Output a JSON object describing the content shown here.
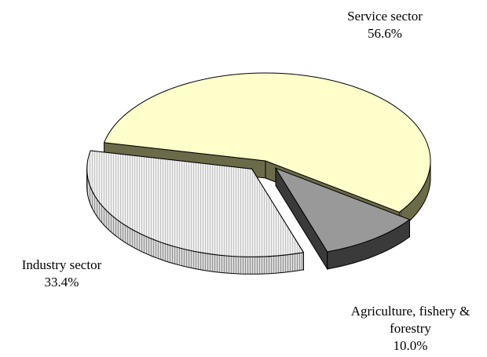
{
  "chart_data": {
    "type": "pie",
    "title": "",
    "slices": [
      {
        "label": "Service sector",
        "value_text": "56.6%",
        "value": 56.6,
        "top_color": "#ffffcc",
        "side_color": "#6b6b4a"
      },
      {
        "label": "Agriculture, fishery & forestry",
        "label_lines": [
          "Agriculture, fishery &",
          "forestry"
        ],
        "value_text": "10.0%",
        "value": 10.0,
        "top_color": "#999999",
        "side_color": "#3a3a3a"
      },
      {
        "label": "Industry sector",
        "value_text": "33.4%",
        "value": 33.4,
        "top_color": "#e6e6e6",
        "side_color": "#cfcfcf",
        "pattern": "vertical-stripes"
      }
    ],
    "style": "3d-exploded"
  }
}
